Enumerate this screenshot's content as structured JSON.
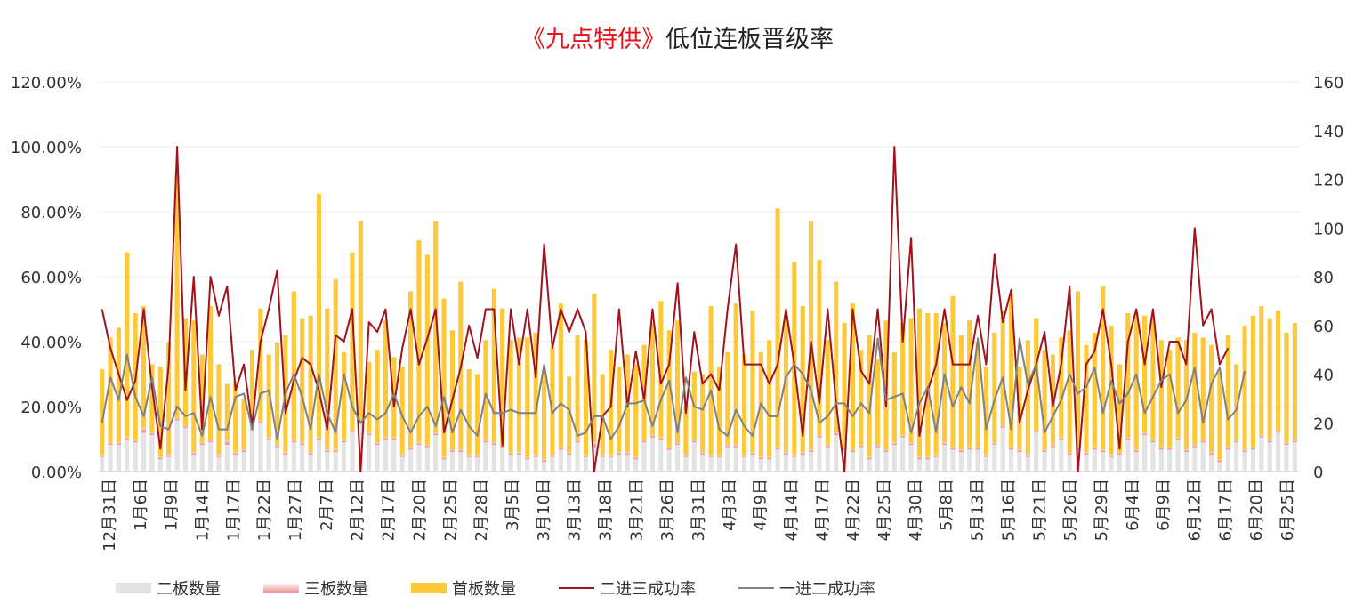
{
  "title_prefix": "《九点特供》",
  "title_suffix": "低位连板晋级率",
  "chart_data": {
    "type": "bar",
    "title": "《九点特供》低位连板晋级率",
    "left_axis": {
      "min": 0,
      "max": 1.2,
      "ticks": [
        "0.00%",
        "20.00%",
        "40.00%",
        "60.00%",
        "80.00%",
        "100.00%",
        "120.00%"
      ]
    },
    "right_axis": {
      "min": 0,
      "max": 160,
      "ticks": [
        "0",
        "20",
        "40",
        "60",
        "80",
        "100",
        "120",
        "140",
        "160"
      ]
    },
    "grid": true,
    "legend_position": "bottom",
    "x_tick_labels": [
      "12月31日",
      "1月6日",
      "1月9日",
      "1月14日",
      "1月17日",
      "1月22日",
      "1月27日",
      "2月7日",
      "2月12日",
      "2月17日",
      "2月20日",
      "2月25日",
      "2月28日",
      "3月5日",
      "3月10日",
      "3月13日",
      "3月18日",
      "3月21日",
      "3月26日",
      "3月31日",
      "4月3日",
      "4月9日",
      "4月14日",
      "4月17日",
      "4月22日",
      "4月25日",
      "4月30日",
      "5月8日",
      "5月13日",
      "5月16日",
      "5月21日",
      "5月26日",
      "5月29日",
      "6月4日",
      "6月9日",
      "6月12日",
      "6月17日",
      "6月20日",
      "6月25日"
    ],
    "series": [
      {
        "name": "二板数量",
        "type": "bar",
        "axis": "right",
        "color": "#e3e3e3",
        "values": [
          6,
          11,
          11,
          13,
          12,
          16,
          15,
          5,
          6,
          21,
          18,
          7,
          11,
          12,
          6,
          11,
          7,
          8,
          17,
          20,
          13,
          10,
          7,
          12,
          11,
          7,
          13,
          8,
          8,
          12,
          16,
          20,
          15,
          11,
          13,
          13,
          6,
          9,
          11,
          10,
          15,
          5,
          8,
          8,
          6,
          6,
          12,
          11,
          10,
          7,
          7,
          5,
          6,
          4,
          6,
          9,
          7,
          12,
          6,
          10,
          6,
          6,
          7,
          7,
          5,
          12,
          14,
          13,
          9,
          11,
          6,
          12,
          7,
          6,
          6,
          10,
          10,
          6,
          7,
          5,
          5,
          9,
          7,
          6,
          7,
          8,
          14,
          10,
          15,
          9,
          8,
          10,
          5,
          10,
          8,
          11,
          14,
          11,
          5,
          5,
          6,
          11,
          9,
          8,
          9,
          9,
          6,
          11,
          18,
          9,
          8,
          6,
          16,
          8,
          10,
          13,
          7,
          9,
          7,
          9,
          8,
          6,
          7,
          13,
          8,
          15,
          12,
          9,
          9,
          13,
          8,
          10,
          12,
          7,
          4,
          9,
          12,
          8,
          9,
          14,
          12,
          16,
          11,
          12
        ]
      },
      {
        "name": "三板数量",
        "type": "bar",
        "axis": "right",
        "color": "#e88a8c",
        "values": [
          1,
          1,
          1,
          1,
          1,
          2,
          1,
          1,
          1,
          1,
          1,
          1,
          1,
          1,
          1,
          2,
          1,
          1,
          1,
          1,
          1,
          1,
          1,
          1,
          1,
          1,
          1,
          1,
          1,
          1,
          1,
          1,
          1,
          1,
          1,
          1,
          1,
          1,
          1,
          1,
          1,
          1,
          1,
          1,
          1,
          1,
          1,
          1,
          1,
          1,
          1,
          1,
          1,
          1,
          1,
          1,
          1,
          1,
          1,
          2,
          1,
          1,
          1,
          1,
          1,
          1,
          1,
          1,
          1,
          1,
          1,
          1,
          1,
          1,
          1,
          1,
          1,
          1,
          1,
          1,
          1,
          1,
          1,
          1,
          1,
          1,
          1,
          1,
          1,
          1,
          1,
          1,
          1,
          1,
          1,
          1,
          1,
          1,
          1,
          1,
          1,
          1,
          1,
          1,
          1,
          1,
          1,
          1,
          1,
          1,
          1,
          1,
          1,
          1,
          1,
          1,
          1,
          1,
          1,
          1,
          1,
          1,
          1,
          1,
          1,
          1,
          1,
          1,
          1,
          1,
          1,
          1,
          1,
          1,
          1,
          1,
          1,
          1,
          1,
          1,
          1,
          1,
          1,
          1
        ]
      },
      {
        "name": "首板数量",
        "type": "bar",
        "axis": "right",
        "color": "#fbc93a",
        "values": [
          35,
          43,
          47,
          76,
          52,
          50,
          28,
          37,
          46,
          100,
          44,
          54,
          36,
          55,
          37,
          23,
          29,
          21,
          32,
          46,
          34,
          42,
          48,
          61,
          51,
          56,
          100,
          58,
          70,
          36,
          73,
          82,
          29,
          38,
          48,
          33,
          36,
          64,
          83,
          78,
          87,
          65,
          49,
          69,
          35,
          33,
          41,
          63,
          56,
          46,
          47,
          49,
          50,
          36,
          44,
          59,
          31,
          43,
          47,
          61,
          33,
          43,
          35,
          40,
          38,
          39,
          46,
          56,
          48,
          50,
          20,
          28,
          32,
          61,
          36,
          38,
          58,
          41,
          58,
          43,
          48,
          98,
          56,
          79,
          60,
          94,
          72,
          43,
          62,
          51,
          60,
          39,
          50,
          35,
          53,
          37,
          46,
          51,
          61,
          59,
          58,
          49,
          62,
          47,
          52,
          43,
          36,
          45,
          47,
          63,
          34,
          47,
          46,
          41,
          37,
          41,
          50,
          64,
          44,
          47,
          67,
          53,
          36,
          51,
          56,
          48,
          50,
          44,
          40,
          41,
          45,
          46,
          42,
          44,
          36,
          46,
          31,
          51,
          54,
          53,
          50,
          49,
          45,
          48
        ]
      },
      {
        "name": "二进三成功率",
        "type": "line",
        "axis": "left",
        "color": "#a0131c",
        "values": [
          0.5,
          0.38,
          0.3,
          0.22,
          0.28,
          0.5,
          0.26,
          0.07,
          0.33,
          1.0,
          0.25,
          0.6,
          0.13,
          0.6,
          0.48,
          0.57,
          0.25,
          0.33,
          0.14,
          0.4,
          0.5,
          0.62,
          0.18,
          0.28,
          0.35,
          0.33,
          0.25,
          0.13,
          0.42,
          0.4,
          0.5,
          0.0,
          0.46,
          0.43,
          0.5,
          0.2,
          0.38,
          0.5,
          0.33,
          0.41,
          0.5,
          0.12,
          0.22,
          0.32,
          0.45,
          0.35,
          0.5,
          0.5,
          0.08,
          0.5,
          0.33,
          0.5,
          0.29,
          0.7,
          0.38,
          0.5,
          0.43,
          0.5,
          0.43,
          0.0,
          0.17,
          0.2,
          0.5,
          0.2,
          0.37,
          0.22,
          0.5,
          0.27,
          0.33,
          0.58,
          0.18,
          0.43,
          0.27,
          0.3,
          0.25,
          0.5,
          0.7,
          0.33,
          0.33,
          0.33,
          0.27,
          0.33,
          0.5,
          0.33,
          0.11,
          0.4,
          0.21,
          0.5,
          0.21,
          0.0,
          0.5,
          0.31,
          0.27,
          0.5,
          0.2,
          1.0,
          0.4,
          0.72,
          0.11,
          0.25,
          0.33,
          0.5,
          0.33,
          0.33,
          0.33,
          0.48,
          0.33,
          0.67,
          0.46,
          0.56,
          0.15,
          0.25,
          0.33,
          0.43,
          0.2,
          0.33,
          0.57,
          0.0,
          0.33,
          0.37,
          0.5,
          0.33,
          0.07,
          0.4,
          0.5,
          0.33,
          0.5,
          0.26,
          0.4,
          0.4,
          0.33,
          0.75,
          0.45,
          0.5,
          0.33,
          0.38
        ]
      },
      {
        "name": "一进二成功率",
        "type": "line",
        "axis": "left",
        "color": "#808080",
        "values": [
          0.15,
          0.29,
          0.22,
          0.36,
          0.23,
          0.17,
          0.29,
          0.14,
          0.13,
          0.2,
          0.17,
          0.18,
          0.11,
          0.23,
          0.13,
          0.13,
          0.23,
          0.24,
          0.13,
          0.24,
          0.25,
          0.1,
          0.24,
          0.3,
          0.23,
          0.13,
          0.3,
          0.18,
          0.12,
          0.3,
          0.2,
          0.15,
          0.18,
          0.16,
          0.18,
          0.24,
          0.17,
          0.12,
          0.17,
          0.2,
          0.14,
          0.23,
          0.12,
          0.19,
          0.14,
          0.11,
          0.24,
          0.18,
          0.18,
          0.19,
          0.18,
          0.18,
          0.18,
          0.33,
          0.18,
          0.21,
          0.19,
          0.11,
          0.12,
          0.17,
          0.17,
          0.1,
          0.14,
          0.21,
          0.21,
          0.22,
          0.14,
          0.22,
          0.28,
          0.12,
          0.29,
          0.2,
          0.19,
          0.25,
          0.13,
          0.11,
          0.19,
          0.14,
          0.11,
          0.21,
          0.17,
          0.17,
          0.29,
          0.33,
          0.3,
          0.25,
          0.15,
          0.17,
          0.21,
          0.21,
          0.17,
          0.21,
          0.18,
          0.41,
          0.22,
          0.23,
          0.24,
          0.12,
          0.21,
          0.26,
          0.12,
          0.3,
          0.2,
          0.26,
          0.21,
          0.41,
          0.13,
          0.22,
          0.29,
          0.13,
          0.41,
          0.27,
          0.33,
          0.12,
          0.17,
          0.22,
          0.3,
          0.24,
          0.26,
          0.32,
          0.18,
          0.28,
          0.21,
          0.24,
          0.3,
          0.18,
          0.23,
          0.28,
          0.3,
          0.18,
          0.22,
          0.32,
          0.15,
          0.27,
          0.32,
          0.16,
          0.19,
          0.31
        ]
      }
    ]
  }
}
